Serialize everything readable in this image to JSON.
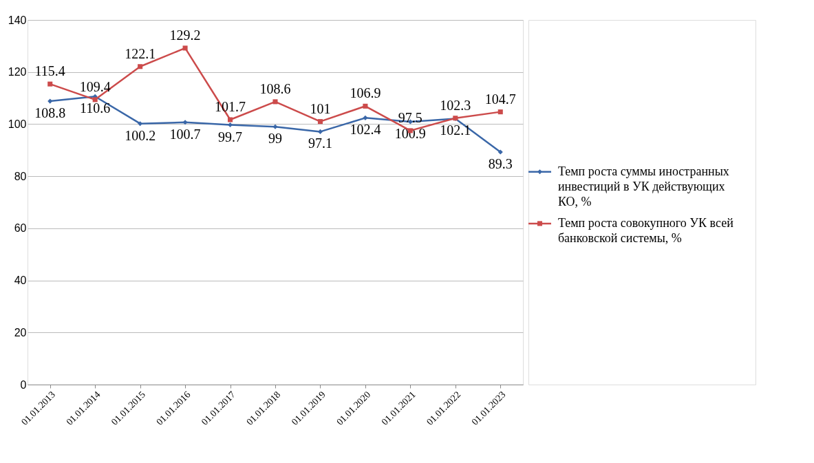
{
  "chart_data": {
    "type": "line",
    "categories": [
      "01.01.2013",
      "01.01.2014",
      "01.01.2015",
      "01.01.2016",
      "01.01.2017",
      "01.01.2018",
      "01.01.2019",
      "01.01.2020",
      "01.01.2021",
      "01.01.2022",
      "01.01.2023"
    ],
    "series": [
      {
        "name": "Темп роста суммы иностранных инвестиций в УК действующих КО, %",
        "color": "#3a67a8",
        "marker": "diamond",
        "values": [
          108.8,
          110.6,
          100.2,
          100.7,
          99.7,
          99,
          97.1,
          102.4,
          100.9,
          102.1,
          89.3
        ]
      },
      {
        "name": "Темп роста совокупного УК всей банковской системы, %",
        "color": "#cc4b4b",
        "marker": "square",
        "values": [
          115.4,
          109.4,
          122.1,
          129.2,
          101.7,
          108.6,
          101,
          106.9,
          97.5,
          102.3,
          104.7
        ]
      }
    ],
    "ylim": [
      0,
      140
    ],
    "yticks": [
      0,
      20,
      40,
      60,
      80,
      100,
      120,
      140
    ],
    "grid": "y",
    "legend": "right",
    "data_labels": true,
    "line_style": "solid"
  }
}
